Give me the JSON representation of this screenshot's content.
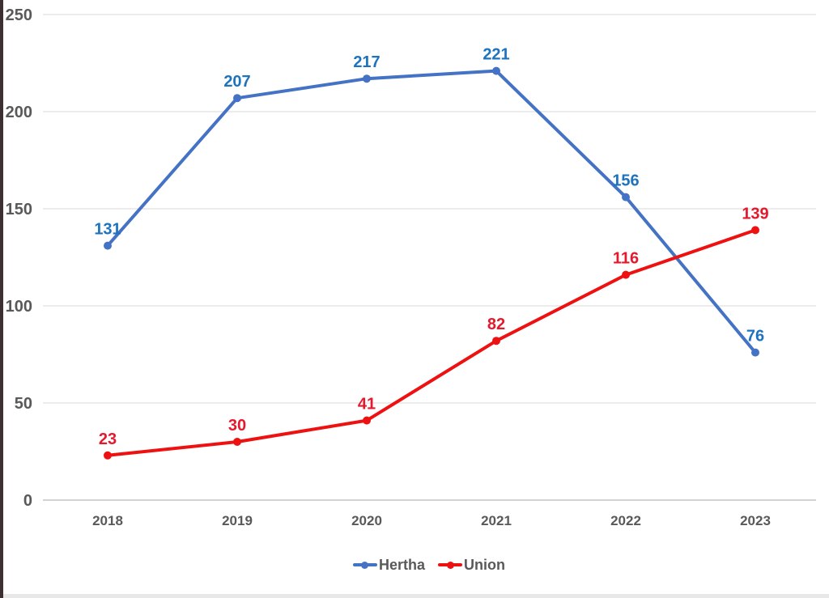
{
  "page": {
    "background": "#ffffff",
    "left_border_color": "#3c3033",
    "bottom_strip_color": "#e8e8e8"
  },
  "chart_data": {
    "type": "line",
    "title": "",
    "xlabel": "",
    "ylabel": "",
    "x": [
      "2018",
      "2019",
      "2020",
      "2021",
      "2022",
      "2023"
    ],
    "series": [
      {
        "name": "Hertha",
        "values": [
          131,
          207,
          217,
          221,
          156,
          76
        ],
        "line_color": "#4472c4",
        "label_color": "#1e73be"
      },
      {
        "name": "Union",
        "values": [
          23,
          30,
          41,
          82,
          116,
          139
        ],
        "line_color": "#ee1111",
        "label_color": "#e4192d"
      }
    ],
    "ylim": [
      0,
      250
    ],
    "yticks": [
      0,
      50,
      100,
      150,
      200,
      250
    ],
    "grid": true,
    "data_labels": true,
    "legend_position": "bottom",
    "axis_label_color": "#595959",
    "gridline_color": "#e5e5e5",
    "axis_line_color": "#d2d2d2"
  }
}
